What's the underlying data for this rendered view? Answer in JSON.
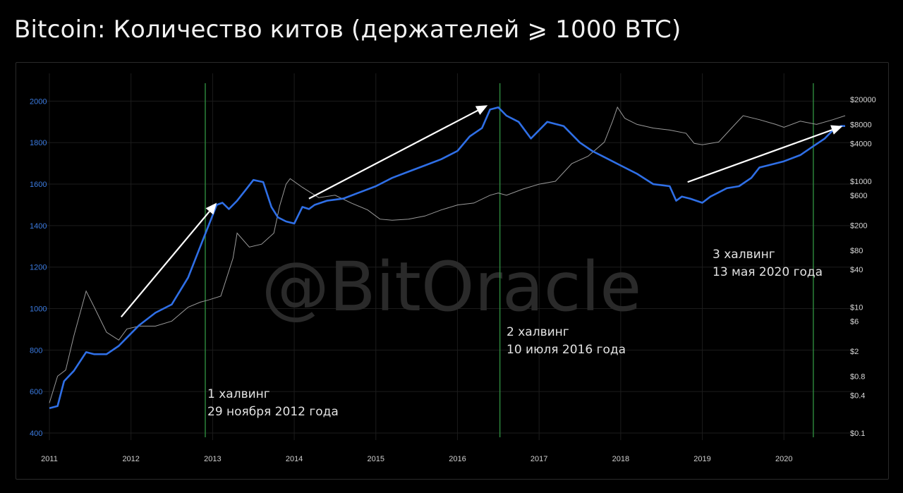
{
  "title": "Bitcoin: Количество китов (держателей ⩾ 1000 BTC)",
  "watermark": "@BitOracle",
  "colors": {
    "background": "#000000",
    "whales_line": "#2f6fe6",
    "price_line": "#9a9a9a",
    "halving_line": "#2e8b3e",
    "left_axis_text": "#3b7be0",
    "right_axis_text": "#d8d8d8",
    "arrow": "#ffffff",
    "grid": "#1c1c1c"
  },
  "chart_data": {
    "type": "line",
    "title": "Bitcoin: Количество китов (держателей ⩾ 1000 BTC)",
    "grid": true,
    "x_range": [
      2011.0,
      2020.75
    ],
    "y_left_range": [
      400,
      2100
    ],
    "y_right_scale": "log",
    "y_right_range": [
      0.1,
      40000
    ],
    "x_ticks": [
      "2011",
      "2012",
      "2013",
      "2014",
      "2015",
      "2016",
      "2017",
      "2018",
      "2019",
      "2020"
    ],
    "y_left_ticks": [
      400,
      600,
      800,
      1000,
      1200,
      1400,
      1600,
      1800,
      2000
    ],
    "y_right_ticks": [
      {
        "value": 0.1,
        "label": "$0.1"
      },
      {
        "value": 0.4,
        "label": "$0.4"
      },
      {
        "value": 0.8,
        "label": "$0.8"
      },
      {
        "value": 2,
        "label": "$2"
      },
      {
        "value": 6,
        "label": "$6"
      },
      {
        "value": 10,
        "label": "$10"
      },
      {
        "value": 40,
        "label": "$40"
      },
      {
        "value": 80,
        "label": "$80"
      },
      {
        "value": 200,
        "label": "$200"
      },
      {
        "value": 600,
        "label": "$600"
      },
      {
        "value": 1000,
        "label": "$1000"
      },
      {
        "value": 4000,
        "label": "$4000"
      },
      {
        "value": 8000,
        "label": "$8000"
      },
      {
        "value": 20000,
        "label": "$20000"
      }
    ],
    "series": [
      {
        "axis": "left",
        "x": [
          2011.0,
          2011.1,
          2011.18,
          2011.3,
          2011.45,
          2011.55,
          2011.7,
          2011.85,
          2011.95,
          2012.1,
          2012.3,
          2012.5,
          2012.7,
          2012.85,
          2012.95,
          2013.05,
          2013.12,
          2013.2,
          2013.3,
          2013.4,
          2013.5,
          2013.62,
          2013.72,
          2013.8,
          2013.9,
          2014.0,
          2014.1,
          2014.18,
          2014.25,
          2014.4,
          2014.6,
          2014.8,
          2015.0,
          2015.2,
          2015.4,
          2015.6,
          2015.8,
          2016.0,
          2016.15,
          2016.3,
          2016.4,
          2016.5,
          2016.6,
          2016.75,
          2016.9,
          2017.1,
          2017.3,
          2017.5,
          2017.65,
          2017.8,
          2018.0,
          2018.2,
          2018.4,
          2018.6,
          2018.68,
          2018.75,
          2018.85,
          2019.0,
          2019.1,
          2019.2,
          2019.3,
          2019.45,
          2019.6,
          2019.7,
          2019.8,
          2020.0,
          2020.2,
          2020.35,
          2020.5,
          2020.6,
          2020.7,
          2020.75
        ],
        "y": [
          520,
          530,
          650,
          700,
          790,
          780,
          780,
          820,
          860,
          920,
          980,
          1020,
          1150,
          1300,
          1400,
          1500,
          1510,
          1480,
          1520,
          1570,
          1620,
          1610,
          1490,
          1440,
          1420,
          1410,
          1490,
          1480,
          1500,
          1520,
          1530,
          1560,
          1590,
          1630,
          1660,
          1690,
          1720,
          1760,
          1830,
          1870,
          1960,
          1970,
          1930,
          1900,
          1820,
          1900,
          1880,
          1800,
          1760,
          1730,
          1690,
          1650,
          1600,
          1590,
          1520,
          1540,
          1530,
          1510,
          1540,
          1560,
          1580,
          1590,
          1630,
          1680,
          1690,
          1710,
          1740,
          1780,
          1820,
          1860,
          1880,
          1880
        ]
      },
      {
        "axis": "right",
        "x": [
          2011.0,
          2011.1,
          2011.2,
          2011.3,
          2011.45,
          2011.55,
          2011.7,
          2011.85,
          2011.95,
          2012.1,
          2012.3,
          2012.5,
          2012.7,
          2012.85,
          2012.95,
          2013.1,
          2013.25,
          2013.3,
          2013.45,
          2013.6,
          2013.75,
          2013.82,
          2013.9,
          2013.95,
          2014.1,
          2014.3,
          2014.5,
          2014.7,
          2014.9,
          2015.05,
          2015.2,
          2015.4,
          2015.6,
          2015.8,
          2016.0,
          2016.2,
          2016.4,
          2016.5,
          2016.6,
          2016.8,
          2017.0,
          2017.2,
          2017.4,
          2017.6,
          2017.8,
          2017.9,
          2017.96,
          2018.05,
          2018.2,
          2018.4,
          2018.6,
          2018.8,
          2018.9,
          2019.0,
          2019.2,
          2019.4,
          2019.5,
          2019.7,
          2019.9,
          2020.0,
          2020.2,
          2020.4,
          2020.6,
          2020.75
        ],
        "y": [
          0.3,
          0.8,
          1.0,
          3.5,
          18,
          10,
          4,
          3,
          4.5,
          5,
          5,
          6,
          10,
          12,
          13,
          15,
          60,
          150,
          90,
          100,
          150,
          400,
          900,
          1100,
          800,
          550,
          600,
          450,
          350,
          250,
          240,
          250,
          280,
          350,
          420,
          450,
          600,
          650,
          600,
          750,
          900,
          1000,
          1900,
          2500,
          4200,
          9000,
          15000,
          10000,
          8000,
          7000,
          6500,
          5800,
          4000,
          3800,
          4200,
          8000,
          11000,
          9500,
          8000,
          7200,
          9000,
          8000,
          9500,
          11000
        ]
      }
    ],
    "halvings": [
      {
        "x": 2012.91,
        "label_line1": "1 халвинг",
        "label_line2": "29 ноября 2012 года"
      },
      {
        "x": 2016.52,
        "label_line1": "2 халвинг",
        "label_line2": "10 июля 2016 года"
      },
      {
        "x": 2020.36,
        "label_line1": "3 халвинг",
        "label_line2": "13 мая 2020 года"
      }
    ],
    "arrows": [
      {
        "x1": 2011.88,
        "y1": 960,
        "x2": 2013.05,
        "y2": 1510
      },
      {
        "x1": 2014.18,
        "y1": 1530,
        "x2": 2016.37,
        "y2": 1980
      },
      {
        "x1": 2018.82,
        "y1": 1610,
        "x2": 2020.72,
        "y2": 1880
      }
    ]
  }
}
